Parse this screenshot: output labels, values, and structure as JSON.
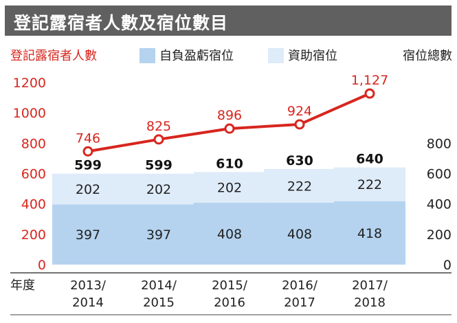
{
  "title": "登記露宿者人數及宿位數目",
  "legend": {
    "line_label": "登記露宿者人數",
    "series_1_label": "自負盈虧宿位",
    "series_2_label": "資助宿位",
    "total_label": "宿位總數"
  },
  "colors": {
    "title_bg": "#606060",
    "line": "#d7261e",
    "series_1": "#b5d3ef",
    "series_2": "#deebf8",
    "axis_left": "#d7261e",
    "text": "#222222"
  },
  "chart_data": {
    "type": "bar",
    "xlabel": "年度",
    "categories": [
      "2013/\n2014",
      "2014/\n2015",
      "2015/\n2016",
      "2016/\n2017",
      "2017/\n2018"
    ],
    "series": [
      {
        "name": "自負盈虧宿位",
        "type": "bar",
        "stacked": true,
        "values": [
          397,
          397,
          408,
          408,
          418
        ]
      },
      {
        "name": "資助宿位",
        "type": "bar",
        "stacked": true,
        "values": [
          202,
          202,
          202,
          222,
          222
        ]
      },
      {
        "name": "登記露宿者人數",
        "type": "line",
        "axis": "left",
        "values": [
          746,
          825,
          896,
          924,
          1127
        ],
        "labels": [
          "746",
          "825",
          "896",
          "924",
          "1,127"
        ]
      }
    ],
    "totals": {
      "name": "宿位總數",
      "values": [
        599,
        599,
        610,
        630,
        640
      ]
    },
    "left_axis": {
      "ticks": [
        0,
        200,
        400,
        600,
        800,
        1000,
        1200
      ],
      "ylim": [
        0,
        1200
      ],
      "color": "red"
    },
    "right_axis": {
      "ticks": [
        0,
        200,
        400,
        600,
        800
      ],
      "ylim": [
        0,
        1200
      ]
    },
    "grid": false,
    "legend_position": "top"
  }
}
